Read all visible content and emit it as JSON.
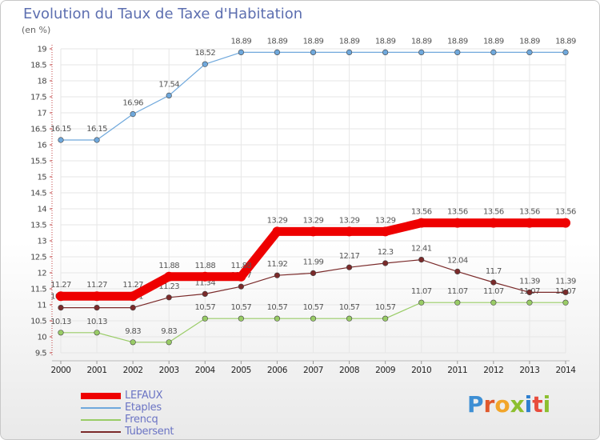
{
  "title": "Evolution du Taux de Taxe d'Habitation",
  "subtitle": "(en %)",
  "logo": {
    "text": "Proxiti",
    "letter_colors": [
      "#3e8fd4",
      "#e0582c",
      "#f2a52a",
      "#8cbf2f",
      "#2e7fcf",
      "#e84c3d",
      "#8cbf2f"
    ]
  },
  "chart_data": {
    "type": "line",
    "title": "Evolution du Taux de Taxe d'Habitation",
    "ylabel": "(en %)",
    "ylim": [
      9.5,
      19
    ],
    "yticks": [
      "9.5",
      "10",
      "10.5",
      "11",
      "11.5",
      "12",
      "12.5",
      "13",
      "13.5",
      "14",
      "14.5",
      "15",
      "15.5",
      "16",
      "16.5",
      "17",
      "17.5",
      "18",
      "18.5",
      "19"
    ],
    "x": [
      "2000",
      "2001",
      "2002",
      "2003",
      "2004",
      "2005",
      "2006",
      "2007",
      "2008",
      "2009",
      "2010",
      "2011",
      "2012",
      "2013",
      "2014"
    ],
    "grid": true,
    "legend_position": "bottom-left",
    "series": [
      {
        "name": "LEFAUX",
        "color": "#ee0000",
        "thick": true,
        "values": [
          11.27,
          11.27,
          11.27,
          11.88,
          11.88,
          11.88,
          13.29,
          13.29,
          13.29,
          13.29,
          13.56,
          13.56,
          13.56,
          13.56,
          13.56
        ],
        "labels": [
          "11.27",
          "11.27",
          "11.27",
          "11.88",
          "11.88",
          "11.88",
          "13.29",
          "13.29",
          "13.29",
          "13.29",
          "13.56",
          "13.56",
          "13.56",
          "13.56",
          "13.56"
        ]
      },
      {
        "name": "Etaples",
        "color": "#6fa8dc",
        "thick": false,
        "values": [
          16.15,
          16.15,
          16.96,
          17.54,
          18.52,
          18.89,
          18.89,
          18.89,
          18.89,
          18.89,
          18.89,
          18.89,
          18.89,
          18.89,
          18.89
        ],
        "labels": [
          "16.15",
          "16.15",
          "16.96",
          "17.54",
          "18.52",
          "18.89",
          "18.89",
          "18.89",
          "18.89",
          "18.89",
          "18.89",
          "18.89",
          "18.89",
          "18.89",
          "18.89"
        ]
      },
      {
        "name": "Frencq",
        "color": "#99cc66",
        "thick": false,
        "values": [
          10.13,
          10.13,
          9.83,
          9.83,
          10.57,
          10.57,
          10.57,
          10.57,
          10.57,
          10.57,
          11.07,
          11.07,
          11.07,
          11.07,
          11.07
        ],
        "labels": [
          "10.13",
          "10.13",
          "9.83",
          "9.83",
          "10.57",
          "10.57",
          "10.57",
          "10.57",
          "10.57",
          "10.57",
          "11.07",
          "11.07",
          "11.07",
          "11.07",
          "11.07"
        ]
      },
      {
        "name": "Tubersent",
        "color": "#7a2a2a",
        "thick": false,
        "values": [
          10.91,
          10.91,
          10.91,
          11.23,
          11.34,
          11.57,
          11.92,
          11.99,
          12.17,
          12.3,
          12.41,
          12.04,
          11.7,
          11.39,
          11.39
        ],
        "labels": [
          "10.91",
          "10.91",
          "10.91",
          "11.23",
          "11.34",
          "11.57",
          "11.92",
          "11.99",
          "12.17",
          "12.3",
          "12.41",
          "12.04",
          "11.7",
          "11.39",
          "11.39"
        ]
      }
    ]
  }
}
